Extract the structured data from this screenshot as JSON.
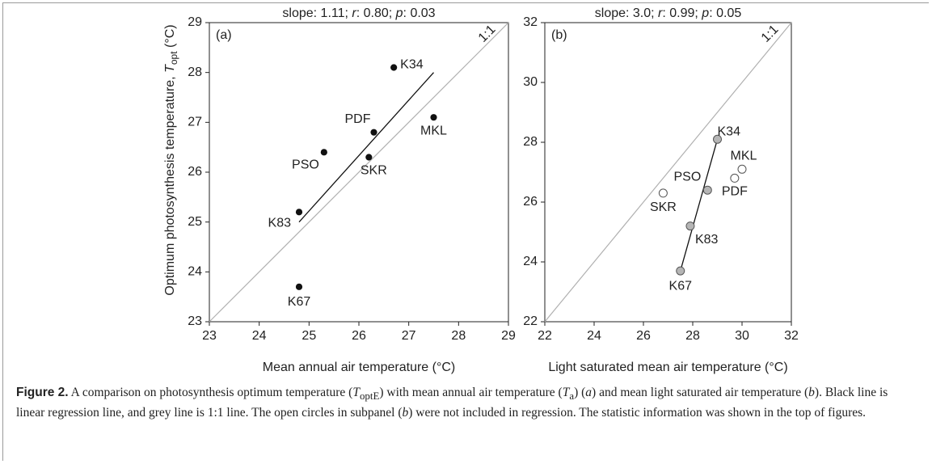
{
  "chart_data": [
    {
      "type": "scatter",
      "title_parts": [
        "slope: 1.11; ",
        "r",
        ": 0.80; ",
        "p",
        ": 0.03"
      ],
      "panel_label": "(a)",
      "xlabel": "Mean annual air temperature (°C)",
      "ylabel_parts": [
        "Optimum photosynthesis temperature, ",
        "T",
        "opt",
        " (°C)"
      ],
      "xlim": [
        23,
        29
      ],
      "ylim": [
        23,
        29
      ],
      "xticks": [
        23,
        24,
        25,
        26,
        27,
        28,
        29
      ],
      "yticks": [
        23,
        24,
        25,
        26,
        27,
        28,
        29
      ],
      "points": [
        {
          "label": "K34",
          "x": 26.7,
          "y": 28.1,
          "included": true
        },
        {
          "label": "PDF",
          "x": 26.3,
          "y": 26.8,
          "included": true
        },
        {
          "label": "MKL",
          "x": 27.5,
          "y": 27.1,
          "included": true
        },
        {
          "label": "PSO",
          "x": 25.3,
          "y": 26.4,
          "included": true
        },
        {
          "label": "SKR",
          "x": 26.2,
          "y": 26.3,
          "included": true
        },
        {
          "label": "K83",
          "x": 24.8,
          "y": 25.2,
          "included": true
        },
        {
          "label": "K67",
          "x": 24.8,
          "y": 23.7,
          "included": true
        }
      ],
      "included_color": "#111111",
      "fit_line": {
        "x": [
          24.8,
          27.5
        ],
        "y": [
          25.0,
          28.0
        ],
        "color": "#111111"
      },
      "identity_line": {
        "label": "1:1",
        "color": "#b0b0b0"
      }
    },
    {
      "type": "scatter",
      "title_parts": [
        "slope: 3.0; ",
        "r",
        ": 0.99; ",
        "p",
        ": 0.05"
      ],
      "panel_label": "(b)",
      "xlabel": "Light saturated mean air temperature (°C)",
      "xlim": [
        22,
        32
      ],
      "ylim": [
        22,
        32
      ],
      "xticks": [
        22,
        24,
        26,
        28,
        30,
        32
      ],
      "yticks": [
        22,
        24,
        26,
        28,
        30,
        32
      ],
      "points": [
        {
          "label": "K34",
          "x": 29.0,
          "y": 28.1,
          "included": true
        },
        {
          "label": "MKL",
          "x": 30.0,
          "y": 27.1,
          "included": false
        },
        {
          "label": "PDF",
          "x": 29.7,
          "y": 26.8,
          "included": false
        },
        {
          "label": "PSO",
          "x": 28.6,
          "y": 26.4,
          "included": true
        },
        {
          "label": "SKR",
          "x": 26.8,
          "y": 26.3,
          "included": false
        },
        {
          "label": "K83",
          "x": 27.9,
          "y": 25.2,
          "included": true
        },
        {
          "label": "K67",
          "x": 27.5,
          "y": 23.7,
          "included": true
        }
      ],
      "included_color": "#b5b5b5",
      "fit_line": {
        "x": [
          27.5,
          29.0
        ],
        "y": [
          23.7,
          28.1
        ],
        "color": "#111111"
      },
      "identity_line": {
        "label": "1:1",
        "color": "#b0b0b0"
      }
    }
  ],
  "caption": {
    "label": "Figure 2.",
    "parts": [
      {
        "text": " A comparison on photosynthesis optimum temperature ("
      },
      {
        "text": "T",
        "style": "i"
      },
      {
        "text": "optE",
        "style": "sub"
      },
      {
        "text": ") with mean annual air temperature ("
      },
      {
        "text": "T",
        "style": "i"
      },
      {
        "text": "a",
        "style": "sub"
      },
      {
        "text": ") ("
      },
      {
        "text": "a",
        "style": "i"
      },
      {
        "text": ") and mean light saturated air temperature ("
      },
      {
        "text": "b",
        "style": "i"
      },
      {
        "text": "). Black line is linear regression line, and grey line is 1:1 line. The open circles in subpanel ("
      },
      {
        "text": "b",
        "style": "i"
      },
      {
        "text": ") were not included in regression. The statistic information was shown in the top of figures."
      }
    ]
  }
}
